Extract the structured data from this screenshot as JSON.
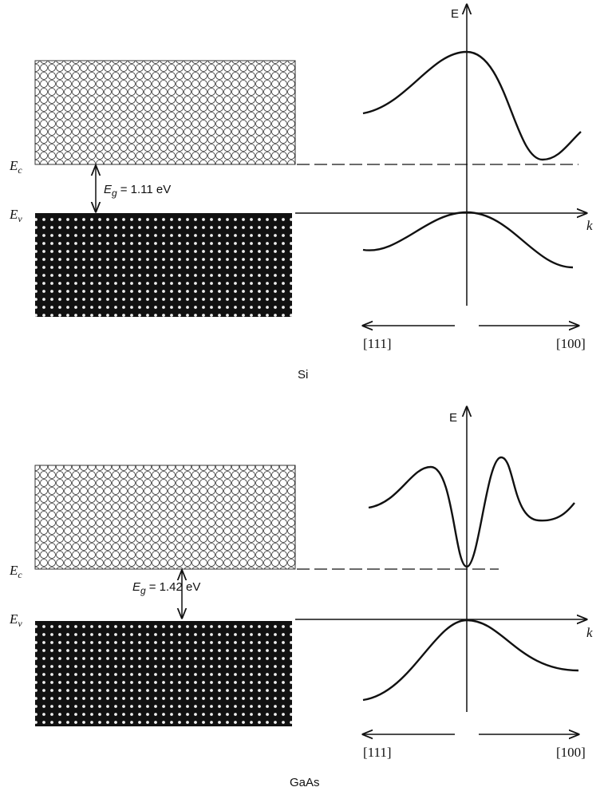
{
  "panels": [
    {
      "material": "Si",
      "energy_axis": "E",
      "k_axis": "k",
      "conduction_label": {
        "main": "E",
        "sub": "c"
      },
      "valence_label": {
        "main": "E",
        "sub": "v"
      },
      "gap_label": {
        "main": "E",
        "sub": "g",
        "value": "= 1.11 eV"
      },
      "left_direction": "[111]",
      "right_direction": "[100]"
    },
    {
      "material": "GaAs",
      "energy_axis": "E",
      "k_axis": "k",
      "conduction_label": {
        "main": "E",
        "sub": "c"
      },
      "valence_label": {
        "main": "E",
        "sub": "v"
      },
      "gap_label": {
        "main": "E",
        "sub": "g",
        "value": "= 1.42 eV"
      },
      "left_direction": "[111]",
      "right_direction": "[100]"
    }
  ]
}
